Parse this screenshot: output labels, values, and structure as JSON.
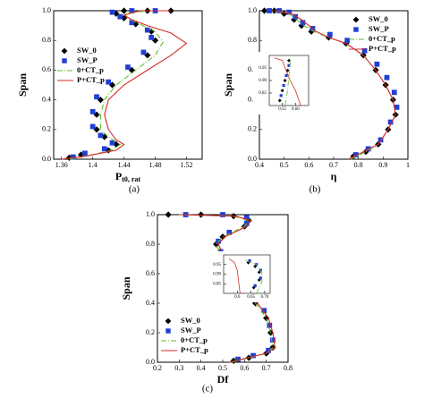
{
  "chart_data": [
    {
      "type": "line",
      "ylabel": "Span",
      "xlabel": "P",
      "xlabel_sub": "t0, rat",
      "caption": "(a)",
      "xlim": [
        1.35,
        1.54
      ],
      "xticks": [
        1.36,
        1.4,
        1.44,
        1.48,
        1.52
      ],
      "ylim": [
        0,
        1
      ],
      "yticks": [
        {
          "value": 0,
          "label": "0.0"
        },
        {
          "value": 0.2,
          "label": "0.2"
        },
        {
          "value": 0.4,
          "label": "0.4"
        },
        {
          "value": 0.6,
          "label": "0.6"
        },
        {
          "value": 0.8,
          "label": "0.8"
        },
        {
          "value": 1,
          "label": "1.0"
        }
      ],
      "legend": "center left",
      "series": [
        {
          "name": "SW_0",
          "color": "#000000",
          "marker": "diamond",
          "x": [
            1.37,
            1.385,
            1.42,
            1.43,
            1.415,
            1.405,
            1.405,
            1.41,
            1.425,
            1.45,
            1.47,
            1.48,
            1.475,
            1.455,
            1.44,
            1.43,
            1.44,
            1.47,
            1.5
          ],
          "values": [
            0.01,
            0.03,
            0.06,
            0.1,
            0.15,
            0.2,
            0.3,
            0.4,
            0.5,
            0.6,
            0.7,
            0.8,
            0.86,
            0.91,
            0.95,
            0.98,
            1,
            1,
            1
          ]
        },
        {
          "name": "SW_P",
          "color": "#1f3fd6",
          "marker": "square",
          "x": [
            1.375,
            1.39,
            1.415,
            1.425,
            1.41,
            1.4,
            1.4,
            1.405,
            1.42,
            1.445,
            1.465,
            1.475,
            1.47,
            1.45,
            1.435,
            1.425,
            1.45,
            1.48
          ],
          "values": [
            0.015,
            0.04,
            0.07,
            0.11,
            0.16,
            0.22,
            0.32,
            0.42,
            0.52,
            0.62,
            0.72,
            0.82,
            0.87,
            0.92,
            0.96,
            0.99,
            1,
            1
          ]
        },
        {
          "name": "0+CT_p",
          "color": "#5fbf2a",
          "dash": "6 2 1 2",
          "x": [
            1.37,
            1.39,
            1.425,
            1.435,
            1.42,
            1.41,
            1.41,
            1.415,
            1.43,
            1.455,
            1.48,
            1.49,
            1.48,
            1.46,
            1.445,
            1.44,
            1.47,
            1.5
          ],
          "values": [
            0,
            0.02,
            0.06,
            0.1,
            0.15,
            0.2,
            0.3,
            0.4,
            0.5,
            0.6,
            0.7,
            0.79,
            0.86,
            0.91,
            0.95,
            0.98,
            1,
            1
          ]
        },
        {
          "name": "P+CT_p",
          "color": "#d42a2a",
          "x": [
            1.36,
            1.39,
            1.43,
            1.44,
            1.43,
            1.42,
            1.415,
            1.42,
            1.44,
            1.47,
            1.5,
            1.52,
            1.5,
            1.47,
            1.45,
            1.44,
            1.46,
            1.5
          ],
          "values": [
            0,
            0.02,
            0.06,
            0.1,
            0.13,
            0.2,
            0.3,
            0.4,
            0.5,
            0.6,
            0.7,
            0.78,
            0.85,
            0.9,
            0.94,
            0.97,
            1,
            1
          ]
        }
      ]
    },
    {
      "type": "line",
      "ylabel": "Span",
      "xlabel": "η",
      "caption": "(b)",
      "xlim": [
        0.4,
        1
      ],
      "xticks": [
        0.4,
        0.5,
        0.6,
        0.7,
        0.8,
        0.9,
        1
      ],
      "ylim": [
        0,
        1
      ],
      "yticks": [
        {
          "value": 0,
          "label": "0.0"
        },
        {
          "value": 0.2,
          "label": "0.2"
        },
        {
          "value": 0.4,
          "label": "0.4"
        },
        {
          "value": 0.6,
          "label": "0.6"
        },
        {
          "value": 0.8,
          "label": "0.8"
        },
        {
          "value": 1,
          "label": "1.0"
        }
      ],
      "legend": "upper right",
      "series": [
        {
          "name": "SW_0",
          "color": "#000000",
          "marker": "diamond",
          "x": [
            0.78,
            0.83,
            0.88,
            0.92,
            0.95,
            0.94,
            0.91,
            0.87,
            0.82,
            0.75,
            0.68,
            0.61,
            0.57,
            0.54,
            0.5,
            0.46,
            0.42
          ],
          "values": [
            0.02,
            0.05,
            0.1,
            0.2,
            0.3,
            0.4,
            0.5,
            0.6,
            0.7,
            0.78,
            0.82,
            0.86,
            0.9,
            0.94,
            0.98,
            1,
            1
          ]
        },
        {
          "name": "SW_P",
          "color": "#1f3fd6",
          "marker": "square",
          "x": [
            0.79,
            0.84,
            0.89,
            0.93,
            0.955,
            0.945,
            0.915,
            0.875,
            0.825,
            0.755,
            0.685,
            0.615,
            0.575,
            0.545,
            0.52,
            0.48,
            0.44
          ],
          "values": [
            0.03,
            0.07,
            0.13,
            0.25,
            0.35,
            0.45,
            0.55,
            0.64,
            0.73,
            0.8,
            0.84,
            0.88,
            0.92,
            0.96,
            0.99,
            1,
            1
          ]
        },
        {
          "name": "0+CT_p",
          "color": "#5fbf2a",
          "dash": "6 2 1 2",
          "x": [
            0.77,
            0.83,
            0.88,
            0.92,
            0.95,
            0.94,
            0.91,
            0.87,
            0.82,
            0.75,
            0.68,
            0.62,
            0.58,
            0.55,
            0.52,
            0.45
          ],
          "values": [
            0,
            0.05,
            0.1,
            0.2,
            0.3,
            0.4,
            0.5,
            0.6,
            0.7,
            0.78,
            0.82,
            0.86,
            0.9,
            0.94,
            0.98,
            1
          ]
        },
        {
          "name": "P+CT_p",
          "color": "#d42a2a",
          "x": [
            0.76,
            0.82,
            0.88,
            0.92,
            0.95,
            0.94,
            0.91,
            0.87,
            0.82,
            0.75,
            0.68,
            0.63,
            0.6,
            0.57,
            0.53,
            0.46
          ],
          "values": [
            0,
            0.05,
            0.1,
            0.2,
            0.3,
            0.4,
            0.5,
            0.6,
            0.7,
            0.78,
            0.82,
            0.86,
            0.9,
            0.94,
            0.98,
            1
          ]
        }
      ]
    },
    {
      "type": "line",
      "ylabel": "Span",
      "xlabel": "Df",
      "caption": "(c)",
      "xlim": [
        0.2,
        0.8
      ],
      "xticks": [
        0.2,
        0.3,
        0.4,
        0.5,
        0.6,
        0.7,
        0.8
      ],
      "ylim": [
        0,
        1
      ],
      "yticks": [
        {
          "value": 0,
          "label": "0.0"
        },
        {
          "value": 0.2,
          "label": "0.2"
        },
        {
          "value": 0.4,
          "label": "0.4"
        },
        {
          "value": 0.6,
          "label": "0.6"
        },
        {
          "value": 0.8,
          "label": "0.8"
        },
        {
          "value": 1,
          "label": "1.0"
        }
      ],
      "legend": "lower left",
      "series": [
        {
          "name": "SW_0",
          "color": "#000000",
          "marker": "diamond",
          "x": [
            0.55,
            0.62,
            0.7,
            0.73,
            0.72,
            0.7,
            0.65,
            0.6,
            0.55,
            0.5,
            0.47,
            0.5,
            0.6,
            0.62,
            0.55,
            0.4,
            0.25
          ],
          "values": [
            0.01,
            0.03,
            0.06,
            0.1,
            0.2,
            0.3,
            0.4,
            0.5,
            0.6,
            0.7,
            0.8,
            0.85,
            0.92,
            0.96,
            0.99,
            1,
            1
          ]
        },
        {
          "name": "SW_P",
          "color": "#1f3fd6",
          "marker": "square",
          "x": [
            0.57,
            0.64,
            0.71,
            0.73,
            0.715,
            0.69,
            0.64,
            0.59,
            0.54,
            0.49,
            0.48,
            0.53,
            0.61,
            0.61,
            0.5,
            0.33
          ],
          "values": [
            0.02,
            0.045,
            0.08,
            0.15,
            0.25,
            0.35,
            0.45,
            0.55,
            0.65,
            0.75,
            0.82,
            0.88,
            0.94,
            0.98,
            1,
            1
          ]
        },
        {
          "name": "0+CT_p",
          "color": "#5fbf2a",
          "dash": "6 2 1 2",
          "x": [
            0.54,
            0.62,
            0.7,
            0.73,
            0.72,
            0.7,
            0.65,
            0.6,
            0.55,
            0.5,
            0.47,
            0.5,
            0.6,
            0.62,
            0.55,
            0.3
          ],
          "values": [
            0,
            0.03,
            0.06,
            0.1,
            0.2,
            0.3,
            0.4,
            0.5,
            0.6,
            0.7,
            0.8,
            0.85,
            0.92,
            0.96,
            0.99,
            1
          ]
        },
        {
          "name": "P+CT_p",
          "color": "#d42a2a",
          "x": [
            0.53,
            0.61,
            0.7,
            0.74,
            0.73,
            0.71,
            0.66,
            0.61,
            0.56,
            0.51,
            0.48,
            0.51,
            0.61,
            0.63,
            0.56,
            0.3
          ],
          "values": [
            0,
            0.03,
            0.06,
            0.1,
            0.2,
            0.3,
            0.4,
            0.5,
            0.6,
            0.7,
            0.8,
            0.85,
            0.92,
            0.96,
            0.99,
            1
          ]
        }
      ]
    },
    {
      "type": "line",
      "xlim": [
        0.5,
        0.65
      ],
      "xticks": [
        0.55,
        {
          "value": 0.6,
          "label": "0.60"
        }
      ],
      "ylim": [
        0.8,
        1
      ],
      "yticks": [
        0.85,
        {
          "value": 0.9,
          "label": "0.90"
        },
        0.95
      ],
      "series": [
        {
          "color": "#000000",
          "marker": "diamond",
          "x": [
            0.54,
            0.55,
            0.56,
            0.57,
            0.575
          ],
          "values": [
            0.82,
            0.86,
            0.9,
            0.94,
            0.98
          ]
        },
        {
          "color": "#1f3fd6",
          "marker": "square",
          "x": [
            0.545,
            0.555,
            0.565,
            0.575
          ],
          "values": [
            0.84,
            0.88,
            0.92,
            0.96
          ]
        },
        {
          "color": "#5fbf2a",
          "dash": "6 2 1 2",
          "x": [
            0.56,
            0.57,
            0.575,
            0.58,
            0.57
          ],
          "values": [
            0.8,
            0.86,
            0.92,
            0.97,
            0.99
          ]
        },
        {
          "color": "#d42a2a",
          "x": [
            0.62,
            0.6,
            0.58,
            0.56,
            0.55,
            0.52
          ],
          "values": [
            0.8,
            0.86,
            0.9,
            0.95,
            0.98,
            0.99
          ]
        }
      ]
    },
    {
      "type": "line",
      "xlim": [
        0.55,
        0.72
      ],
      "xticks": [
        0.6,
        0.65,
        {
          "value": 0.7,
          "label": "0.70"
        }
      ],
      "ylim": [
        0.8,
        1
      ],
      "yticks": [
        0.85,
        {
          "value": 0.9,
          "label": "0.90"
        },
        0.95
      ],
      "series": [
        {
          "color": "#000000",
          "marker": "diamond",
          "x": [
            0.66,
            0.68,
            0.68,
            0.665,
            0.64
          ],
          "values": [
            0.83,
            0.87,
            0.91,
            0.94,
            0.96
          ]
        },
        {
          "color": "#1f3fd6",
          "marker": "square",
          "x": [
            0.665,
            0.685,
            0.685,
            0.67,
            0.645
          ],
          "values": [
            0.84,
            0.88,
            0.92,
            0.95,
            0.97
          ]
        },
        {
          "color": "#5fbf2a",
          "dash": "6 2 1 2",
          "x": [
            0.67,
            0.69,
            0.69,
            0.67,
            0.63
          ],
          "values": [
            0.8,
            0.86,
            0.91,
            0.95,
            0.97
          ]
        },
        {
          "color": "#d42a2a",
          "x": [
            0.61,
            0.605,
            0.6,
            0.59,
            0.57
          ],
          "values": [
            0.8,
            0.86,
            0.92,
            0.96,
            0.98
          ]
        }
      ]
    }
  ]
}
